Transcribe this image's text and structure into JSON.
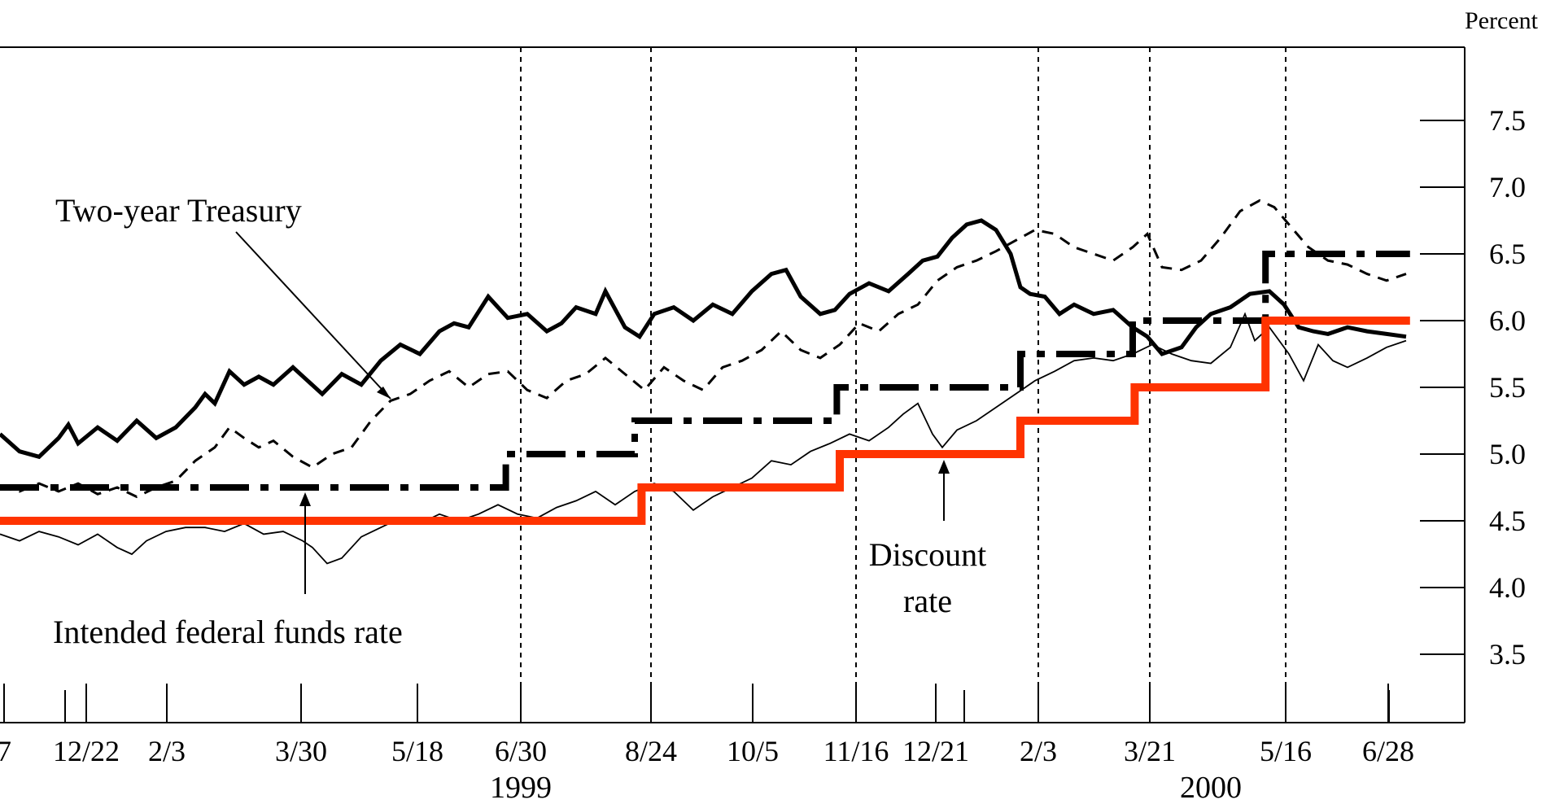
{
  "chart_data": {
    "type": "line",
    "y_unit": "Percent",
    "ylim": [
      3.0,
      8.0
    ],
    "y_ticks": [
      "7.5",
      "7.0",
      "6.5",
      "6.0",
      "5.5",
      "5.0",
      "4.5",
      "4.0",
      "3.5"
    ],
    "x_ticks": [
      "7",
      "12/22",
      "2/3",
      "3/30",
      "5/18",
      "6/30",
      "8/24",
      "10/5",
      "11/16",
      "12/21",
      "2/3",
      "3/21",
      "5/16",
      "6/28"
    ],
    "years": [
      "1999",
      "2000"
    ],
    "annotations": {
      "treasury": "Two-year Treasury",
      "discount": [
        "Discount",
        "rate"
      ],
      "fed_funds": "Intended federal funds rate"
    },
    "series": [
      {
        "key": "two_year_treasury",
        "style": "solid-thick",
        "color": "#000000",
        "points": [
          [
            0,
            5.15
          ],
          [
            20,
            5.02
          ],
          [
            40,
            4.98
          ],
          [
            60,
            5.12
          ],
          [
            70,
            5.22
          ],
          [
            80,
            5.08
          ],
          [
            100,
            5.2
          ],
          [
            120,
            5.1
          ],
          [
            140,
            5.25
          ],
          [
            160,
            5.12
          ],
          [
            180,
            5.2
          ],
          [
            200,
            5.35
          ],
          [
            210,
            5.45
          ],
          [
            220,
            5.38
          ],
          [
            235,
            5.62
          ],
          [
            250,
            5.52
          ],
          [
            265,
            5.58
          ],
          [
            280,
            5.52
          ],
          [
            300,
            5.65
          ],
          [
            315,
            5.55
          ],
          [
            330,
            5.45
          ],
          [
            350,
            5.6
          ],
          [
            370,
            5.52
          ],
          [
            390,
            5.7
          ],
          [
            410,
            5.82
          ],
          [
            430,
            5.75
          ],
          [
            450,
            5.92
          ],
          [
            465,
            5.98
          ],
          [
            480,
            5.95
          ],
          [
            500,
            6.18
          ],
          [
            520,
            6.02
          ],
          [
            540,
            6.05
          ],
          [
            560,
            5.92
          ],
          [
            575,
            5.98
          ],
          [
            590,
            6.1
          ],
          [
            610,
            6.05
          ],
          [
            620,
            6.22
          ],
          [
            640,
            5.95
          ],
          [
            655,
            5.88
          ],
          [
            670,
            6.05
          ],
          [
            690,
            6.1
          ],
          [
            710,
            6.0
          ],
          [
            730,
            6.12
          ],
          [
            750,
            6.05
          ],
          [
            770,
            6.22
          ],
          [
            790,
            6.35
          ],
          [
            805,
            6.38
          ],
          [
            820,
            6.18
          ],
          [
            840,
            6.05
          ],
          [
            855,
            6.08
          ],
          [
            870,
            6.2
          ],
          [
            890,
            6.28
          ],
          [
            910,
            6.22
          ],
          [
            930,
            6.35
          ],
          [
            945,
            6.45
          ],
          [
            960,
            6.48
          ],
          [
            975,
            6.62
          ],
          [
            990,
            6.72
          ],
          [
            1005,
            6.75
          ],
          [
            1020,
            6.68
          ],
          [
            1035,
            6.5
          ],
          [
            1045,
            6.25
          ],
          [
            1055,
            6.2
          ],
          [
            1070,
            6.18
          ],
          [
            1085,
            6.05
          ],
          [
            1100,
            6.12
          ],
          [
            1120,
            6.05
          ],
          [
            1140,
            6.08
          ],
          [
            1160,
            5.95
          ],
          [
            1175,
            5.88
          ],
          [
            1190,
            5.75
          ],
          [
            1210,
            5.8
          ],
          [
            1225,
            5.95
          ],
          [
            1240,
            6.05
          ],
          [
            1260,
            6.1
          ],
          [
            1280,
            6.2
          ],
          [
            1300,
            6.22
          ],
          [
            1315,
            6.12
          ],
          [
            1330,
            5.95
          ],
          [
            1345,
            5.92
          ],
          [
            1360,
            5.9
          ],
          [
            1380,
            5.95
          ],
          [
            1400,
            5.92
          ],
          [
            1420,
            5.9
          ],
          [
            1440,
            5.88
          ]
        ]
      },
      {
        "key": "dashed_rate",
        "style": "dashed",
        "color": "#000000",
        "points": [
          [
            0,
            4.75
          ],
          [
            20,
            4.72
          ],
          [
            40,
            4.78
          ],
          [
            60,
            4.72
          ],
          [
            80,
            4.78
          ],
          [
            100,
            4.7
          ],
          [
            120,
            4.75
          ],
          [
            140,
            4.68
          ],
          [
            160,
            4.75
          ],
          [
            180,
            4.8
          ],
          [
            200,
            4.95
          ],
          [
            220,
            5.05
          ],
          [
            235,
            5.2
          ],
          [
            250,
            5.12
          ],
          [
            265,
            5.05
          ],
          [
            280,
            5.1
          ],
          [
            300,
            4.98
          ],
          [
            320,
            4.9
          ],
          [
            340,
            5.0
          ],
          [
            360,
            5.05
          ],
          [
            380,
            5.25
          ],
          [
            400,
            5.4
          ],
          [
            420,
            5.45
          ],
          [
            440,
            5.55
          ],
          [
            460,
            5.62
          ],
          [
            480,
            5.5
          ],
          [
            500,
            5.6
          ],
          [
            520,
            5.62
          ],
          [
            540,
            5.48
          ],
          [
            560,
            5.42
          ],
          [
            580,
            5.55
          ],
          [
            600,
            5.6
          ],
          [
            620,
            5.72
          ],
          [
            640,
            5.6
          ],
          [
            660,
            5.48
          ],
          [
            680,
            5.65
          ],
          [
            700,
            5.55
          ],
          [
            720,
            5.48
          ],
          [
            740,
            5.65
          ],
          [
            760,
            5.7
          ],
          [
            780,
            5.78
          ],
          [
            800,
            5.92
          ],
          [
            820,
            5.78
          ],
          [
            840,
            5.72
          ],
          [
            860,
            5.82
          ],
          [
            880,
            5.98
          ],
          [
            900,
            5.92
          ],
          [
            920,
            6.05
          ],
          [
            940,
            6.12
          ],
          [
            960,
            6.3
          ],
          [
            980,
            6.4
          ],
          [
            1000,
            6.45
          ],
          [
            1020,
            6.52
          ],
          [
            1040,
            6.6
          ],
          [
            1060,
            6.68
          ],
          [
            1080,
            6.65
          ],
          [
            1100,
            6.55
          ],
          [
            1120,
            6.5
          ],
          [
            1140,
            6.45
          ],
          [
            1160,
            6.55
          ],
          [
            1175,
            6.65
          ],
          [
            1190,
            6.4
          ],
          [
            1210,
            6.38
          ],
          [
            1230,
            6.45
          ],
          [
            1250,
            6.62
          ],
          [
            1270,
            6.82
          ],
          [
            1290,
            6.9
          ],
          [
            1305,
            6.85
          ],
          [
            1320,
            6.72
          ],
          [
            1340,
            6.55
          ],
          [
            1360,
            6.45
          ],
          [
            1380,
            6.42
          ],
          [
            1400,
            6.35
          ],
          [
            1420,
            6.3
          ],
          [
            1440,
            6.35
          ]
        ]
      },
      {
        "key": "thin_rate",
        "style": "solid-thin",
        "color": "#000000",
        "points": [
          [
            0,
            4.4
          ],
          [
            20,
            4.35
          ],
          [
            40,
            4.42
          ],
          [
            60,
            4.38
          ],
          [
            80,
            4.32
          ],
          [
            100,
            4.4
          ],
          [
            120,
            4.3
          ],
          [
            135,
            4.25
          ],
          [
            150,
            4.35
          ],
          [
            170,
            4.42
          ],
          [
            190,
            4.45
          ],
          [
            210,
            4.45
          ],
          [
            230,
            4.42
          ],
          [
            250,
            4.48
          ],
          [
            270,
            4.4
          ],
          [
            290,
            4.42
          ],
          [
            310,
            4.35
          ],
          [
            320,
            4.3
          ],
          [
            335,
            4.18
          ],
          [
            350,
            4.22
          ],
          [
            370,
            4.38
          ],
          [
            390,
            4.45
          ],
          [
            410,
            4.52
          ],
          [
            430,
            4.48
          ],
          [
            450,
            4.55
          ],
          [
            470,
            4.5
          ],
          [
            490,
            4.55
          ],
          [
            510,
            4.62
          ],
          [
            530,
            4.55
          ],
          [
            550,
            4.52
          ],
          [
            570,
            4.6
          ],
          [
            590,
            4.65
          ],
          [
            610,
            4.72
          ],
          [
            630,
            4.62
          ],
          [
            650,
            4.72
          ],
          [
            670,
            4.78
          ],
          [
            690,
            4.72
          ],
          [
            710,
            4.58
          ],
          [
            730,
            4.68
          ],
          [
            750,
            4.75
          ],
          [
            770,
            4.82
          ],
          [
            790,
            4.95
          ],
          [
            810,
            4.92
          ],
          [
            830,
            5.02
          ],
          [
            850,
            5.08
          ],
          [
            870,
            5.15
          ],
          [
            890,
            5.1
          ],
          [
            910,
            5.2
          ],
          [
            925,
            5.3
          ],
          [
            940,
            5.38
          ],
          [
            955,
            5.15
          ],
          [
            965,
            5.05
          ],
          [
            980,
            5.18
          ],
          [
            1000,
            5.25
          ],
          [
            1020,
            5.35
          ],
          [
            1040,
            5.45
          ],
          [
            1060,
            5.55
          ],
          [
            1080,
            5.62
          ],
          [
            1100,
            5.7
          ],
          [
            1120,
            5.72
          ],
          [
            1140,
            5.7
          ],
          [
            1160,
            5.75
          ],
          [
            1180,
            5.82
          ],
          [
            1200,
            5.75
          ],
          [
            1220,
            5.7
          ],
          [
            1240,
            5.68
          ],
          [
            1260,
            5.8
          ],
          [
            1275,
            6.05
          ],
          [
            1285,
            5.85
          ],
          [
            1300,
            5.95
          ],
          [
            1320,
            5.75
          ],
          [
            1335,
            5.55
          ],
          [
            1350,
            5.82
          ],
          [
            1365,
            5.7
          ],
          [
            1380,
            5.65
          ],
          [
            1400,
            5.72
          ],
          [
            1420,
            5.8
          ],
          [
            1440,
            5.85
          ]
        ]
      },
      {
        "key": "discount_rate",
        "style": "dash-dot",
        "color": "#000000",
        "points": [
          [
            0,
            4.75
          ],
          [
            518,
            4.75
          ],
          [
            518,
            5.0
          ],
          [
            650,
            5.0
          ],
          [
            650,
            5.25
          ],
          [
            857,
            5.25
          ],
          [
            857,
            5.5
          ],
          [
            1045,
            5.5
          ],
          [
            1045,
            5.75
          ],
          [
            1160,
            5.75
          ],
          [
            1160,
            6.0
          ],
          [
            1296,
            6.0
          ],
          [
            1296,
            6.5
          ],
          [
            1444,
            6.5
          ]
        ]
      },
      {
        "key": "intended_federal_funds_rate",
        "style": "solid-red",
        "color": "#ff3300",
        "points": [
          [
            0,
            4.5
          ],
          [
            657,
            4.5
          ],
          [
            657,
            4.75
          ],
          [
            860,
            4.75
          ],
          [
            860,
            5.0
          ],
          [
            1045,
            5.0
          ],
          [
            1045,
            5.25
          ],
          [
            1162,
            5.25
          ],
          [
            1162,
            5.5
          ],
          [
            1296,
            5.5
          ],
          [
            1296,
            6.0
          ],
          [
            1444,
            6.0
          ]
        ]
      }
    ]
  }
}
